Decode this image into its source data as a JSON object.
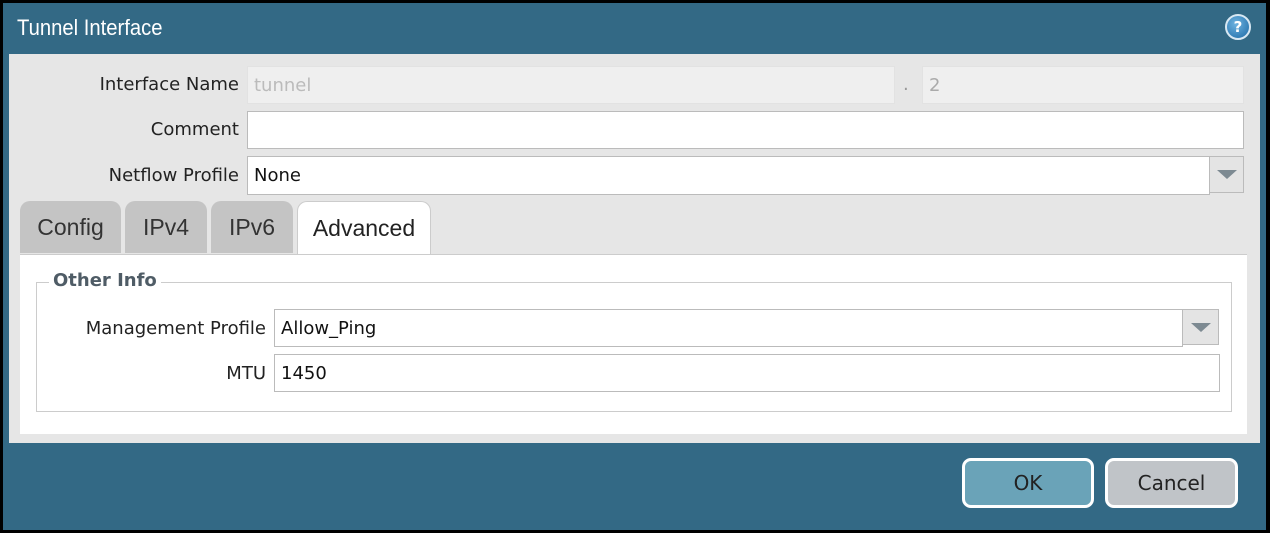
{
  "dialog": {
    "title": "Tunnel Interface",
    "help_icon": "help-icon"
  },
  "form": {
    "interface_name_label": "Interface Name",
    "interface_name_value": "tunnel",
    "separator": ".",
    "interface_number_value": "2",
    "comment_label": "Comment",
    "comment_value": "",
    "netflow_label": "Netflow Profile",
    "netflow_value": "None"
  },
  "tabs": [
    {
      "label": "Config",
      "active": false
    },
    {
      "label": "IPv4",
      "active": false
    },
    {
      "label": "IPv6",
      "active": false
    },
    {
      "label": "Advanced",
      "active": true
    }
  ],
  "advanced": {
    "group_title": "Other Info",
    "mgmt_label": "Management Profile",
    "mgmt_value": "Allow_Ping",
    "mtu_label": "MTU",
    "mtu_value": "1450"
  },
  "buttons": {
    "ok": "OK",
    "cancel": "Cancel"
  },
  "colors": {
    "frame": "#336985",
    "ok": "#6aa3b8",
    "cancel": "#c0c4c8"
  }
}
